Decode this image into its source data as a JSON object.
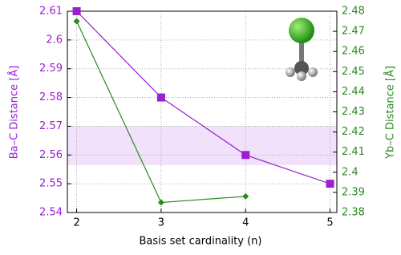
{
  "chart_data": {
    "type": "line",
    "x_label": "Basis set cardinality (n)",
    "y_label": "Ba–C Distance [Å]",
    "y2_label": "Yb–C Distance [Å]",
    "x": [
      2,
      3,
      4,
      5
    ],
    "xlim": [
      1.89,
      5.08
    ],
    "xticks": [
      2,
      3,
      4,
      5
    ],
    "ylim": [
      2.54,
      2.61
    ],
    "yticks": [
      2.54,
      2.55,
      2.56,
      2.57,
      2.58,
      2.59,
      2.6,
      2.61
    ],
    "y2lim": [
      2.38,
      2.48
    ],
    "y2ticks": [
      2.38,
      2.39,
      2.4,
      2.41,
      2.42,
      2.43,
      2.44,
      2.45,
      2.46,
      2.47,
      2.48
    ],
    "band": [
      2.5565,
      2.57
    ],
    "band_color": "#f1e1fb",
    "grid": true,
    "series": [
      {
        "color": "#9a1fd0",
        "marker": "square",
        "values": [
          2.61,
          2.58,
          2.56,
          2.55
        ]
      },
      {
        "color": "#2a8a1f",
        "marker": "diamond",
        "axis": "y2",
        "values": [
          2.475,
          2.385,
          2.388,
          null
        ]
      }
    ]
  }
}
